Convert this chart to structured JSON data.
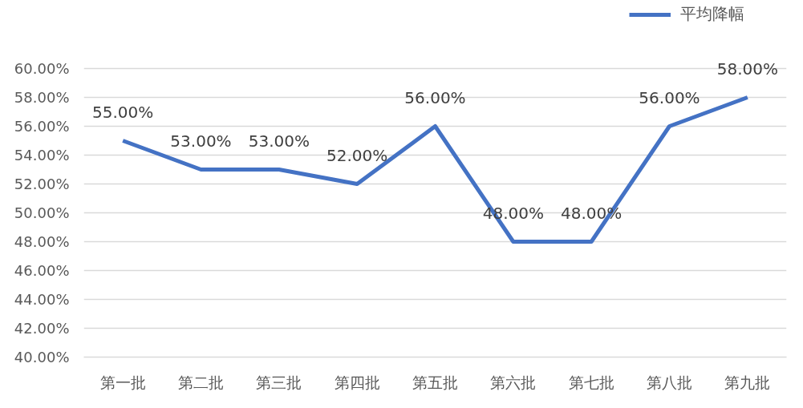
{
  "chart_data": {
    "type": "line",
    "categories": [
      "第一批",
      "第二批",
      "第三批",
      "第四批",
      "第五批",
      "第六批",
      "第七批",
      "第八批",
      "第九批"
    ],
    "series": [
      {
        "name": "平均降幅",
        "color": "#4472c4",
        "values": [
          55,
          53,
          53,
          52,
          56,
          48,
          48,
          56,
          58
        ],
        "value_labels": [
          "55.00%",
          "53.00%",
          "53.00%",
          "52.00%",
          "56.00%",
          "48.00%",
          "48.00%",
          "56.00%",
          "58.00%"
        ]
      }
    ],
    "ylim": [
      40,
      60
    ],
    "yticks": [
      {
        "value": 40,
        "label": "40.00%"
      },
      {
        "value": 42,
        "label": "42.00%"
      },
      {
        "value": 44,
        "label": "44.00%"
      },
      {
        "value": 46,
        "label": "46.00%"
      },
      {
        "value": 48,
        "label": "48.00%"
      },
      {
        "value": 50,
        "label": "50.00%"
      },
      {
        "value": 52,
        "label": "52.00%"
      },
      {
        "value": 54,
        "label": "54.00%"
      },
      {
        "value": 56,
        "label": "56.00%"
      },
      {
        "value": 58,
        "label": "58.00%"
      },
      {
        "value": 60,
        "label": "60.00%"
      }
    ],
    "grid": "y",
    "legend": "top right",
    "line_style": "solid"
  }
}
